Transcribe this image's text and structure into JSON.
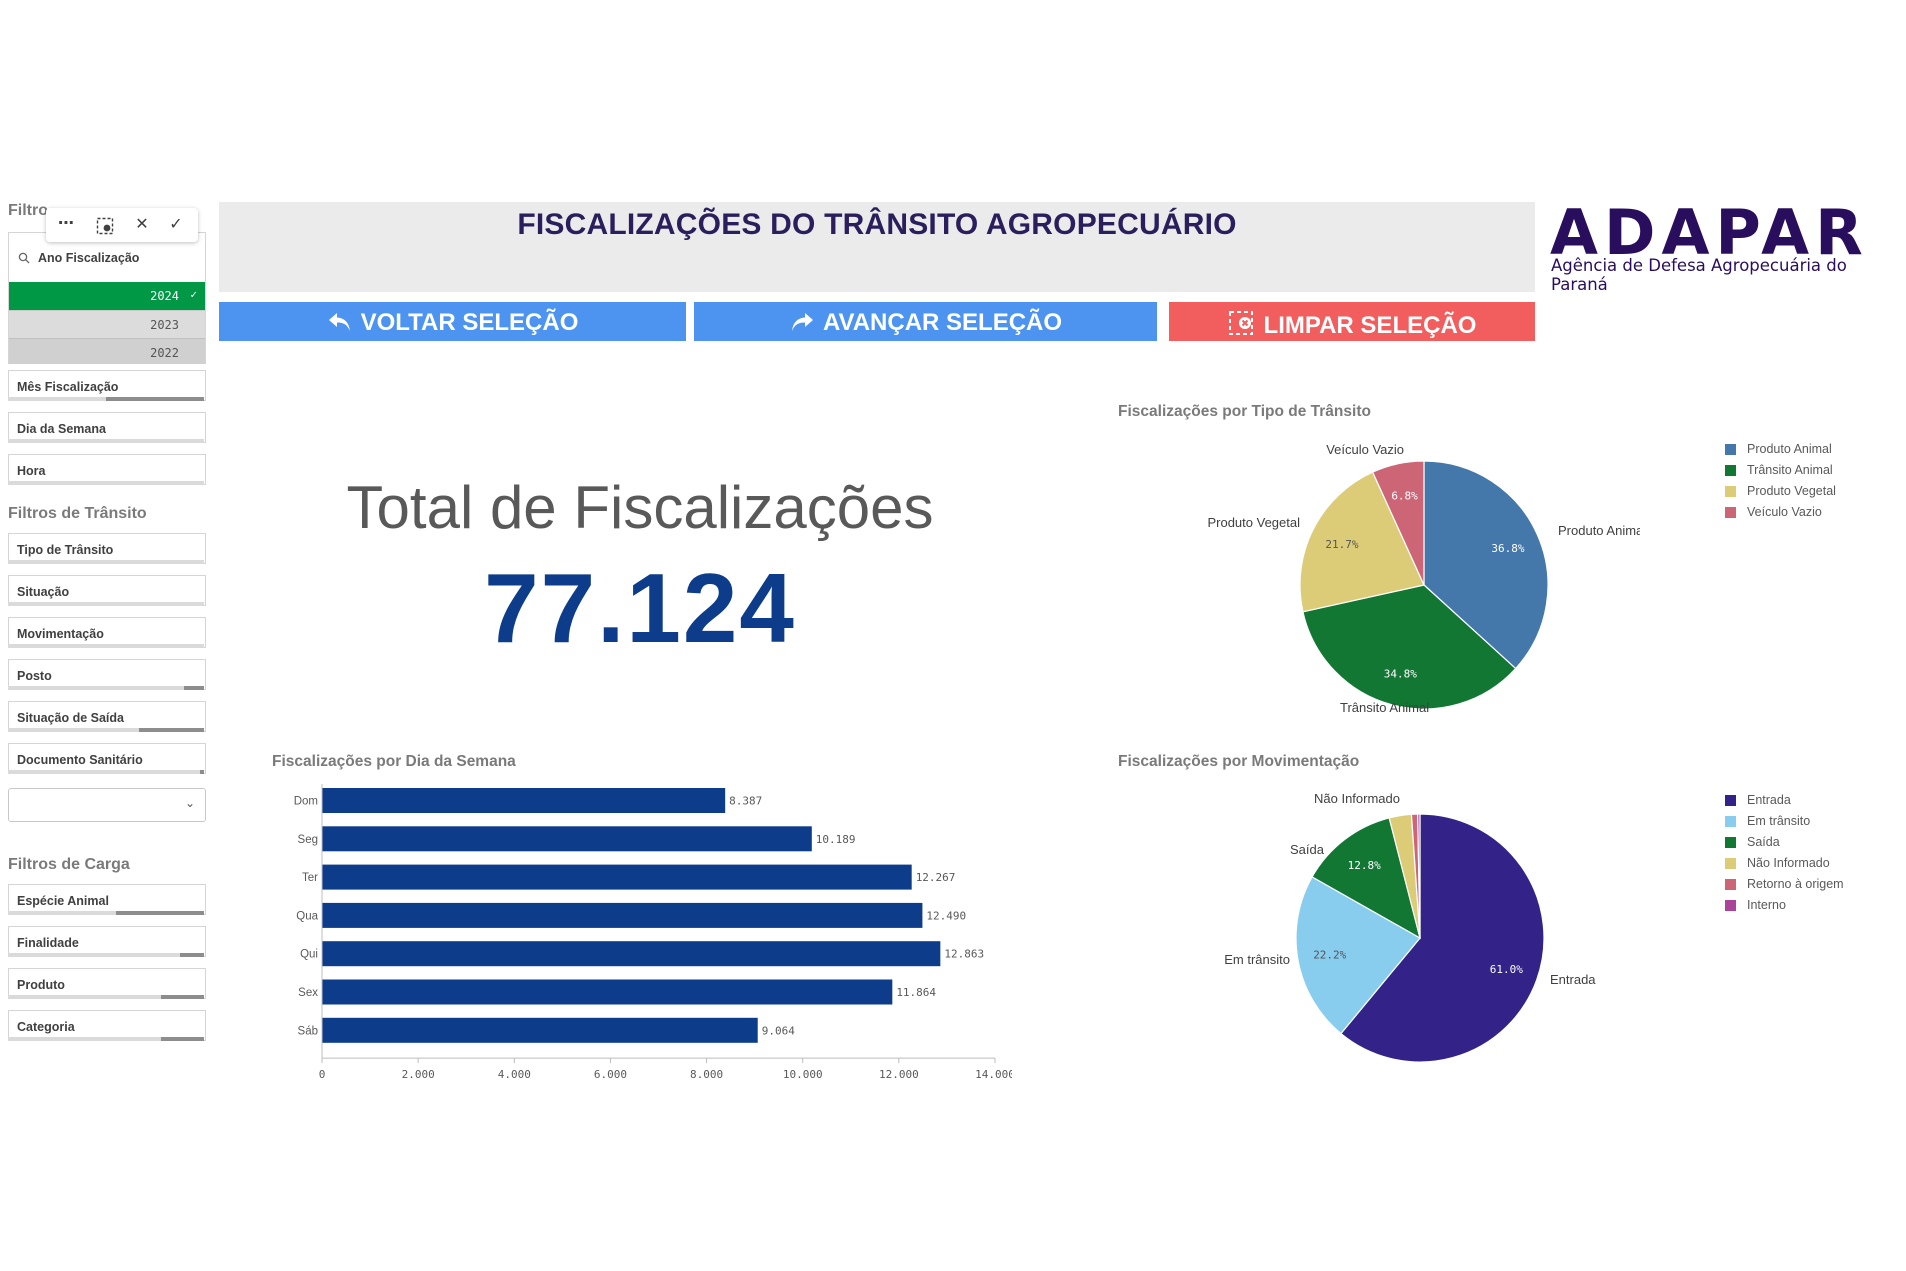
{
  "sidebar": {
    "filtro_title": "Filtro",
    "toolbar": {
      "more_label": "⋯",
      "close_label": "✕",
      "confirm_label": "✓"
    },
    "ano": {
      "label": "Ano Fiscalização",
      "options": [
        {
          "value": "2024",
          "selected": true
        },
        {
          "value": "2023",
          "selected": false
        },
        {
          "value": "2022",
          "selected": false
        }
      ]
    },
    "filters_top": [
      {
        "label": "Mês Fiscalização",
        "fill": 0.5
      },
      {
        "label": "Dia da Semana",
        "fill": 0
      },
      {
        "label": "Hora",
        "fill": 0
      }
    ],
    "transito_title": "Filtros de Trânsito",
    "filters_transito": [
      {
        "label": "Tipo de Trânsito",
        "fill": 0
      },
      {
        "label": "Situação",
        "fill": 0
      },
      {
        "label": "Movimentação",
        "fill": 0
      },
      {
        "label": "Posto",
        "fill": 0.1
      },
      {
        "label": "Situação de Saída",
        "fill": 0.33
      },
      {
        "label": "Documento Sanitário",
        "fill": 0.02
      }
    ],
    "dropdown_value": "",
    "carga_title": "Filtros de Carga",
    "filters_carga": [
      {
        "label": "Espécie Animal",
        "fill": 0.45
      },
      {
        "label": "Finalidade",
        "fill": 0.12
      },
      {
        "label": "Produto",
        "fill": 0.22
      },
      {
        "label": "Categoria",
        "fill": 0.22
      }
    ]
  },
  "header": {
    "title": "FISCALIZAÇÕES DO TRÂNSITO AGROPECUÁRIO",
    "logo_word": "ADAPAR",
    "logo_sub": "Agência de Defesa Agropecuária do Paraná"
  },
  "actions": {
    "back": "VOLTAR SELEÇÃO",
    "forward": "AVANÇAR SELEÇÃO",
    "clear": "LIMPAR SELEÇÃO",
    "colors": {
      "back": "#4d94f0",
      "forward": "#4d94f0",
      "clear": "#f25d5d"
    }
  },
  "kpi": {
    "label": "Total de Fiscalizações",
    "value": "77.124"
  },
  "chart_data": [
    {
      "type": "bar",
      "orientation": "horizontal",
      "title": "Fiscalizações por Dia da Semana",
      "categories": [
        "Dom",
        "Seg",
        "Ter",
        "Qua",
        "Qui",
        "Sex",
        "Sáb"
      ],
      "values": [
        8387,
        10189,
        12267,
        12490,
        12863,
        11864,
        9064
      ],
      "value_labels": [
        "8.387",
        "10.189",
        "12.267",
        "12.490",
        "12.863",
        "11.864",
        "9.064"
      ],
      "xlim": [
        0,
        14000
      ],
      "xticks": [
        0,
        2000,
        4000,
        6000,
        8000,
        10000,
        12000,
        14000
      ],
      "xtick_labels": [
        "0",
        "2.000",
        "4.000",
        "6.000",
        "8.000",
        "10.000",
        "12.000",
        "14.000"
      ],
      "color": "#0d3d8a",
      "grid": false
    },
    {
      "type": "pie",
      "title": "Fiscalizações por Tipo de Trânsito",
      "slices": [
        {
          "name": "Produto Animal",
          "value": 36.8,
          "label": "36.8%",
          "color": "#4477aa"
        },
        {
          "name": "Trânsito Animal",
          "value": 34.8,
          "label": "34.8%",
          "color": "#117733"
        },
        {
          "name": "Produto Vegetal",
          "value": 21.7,
          "label": "21.7%",
          "color": "#ddcc77"
        },
        {
          "name": "Veículo Vazio",
          "value": 6.8,
          "label": "6.8%",
          "color": "#cc6677"
        }
      ],
      "legend": "top-right"
    },
    {
      "type": "pie",
      "title": "Fiscalizações por Movimentação",
      "slices": [
        {
          "name": "Entrada",
          "value": 61.0,
          "label": "61.0%",
          "color": "#332288"
        },
        {
          "name": "Em trânsito",
          "value": 22.2,
          "label": "22.2%",
          "color": "#88ccee"
        },
        {
          "name": "Saída",
          "value": 12.8,
          "label": "12.8%",
          "color": "#117733"
        },
        {
          "name": "Não Informado",
          "value": 2.9,
          "label": "",
          "color": "#ddcc77"
        },
        {
          "name": "Retorno à origem",
          "value": 0.8,
          "label": "",
          "color": "#cc6677"
        },
        {
          "name": "Interno",
          "value": 0.3,
          "label": "",
          "color": "#aa4499"
        }
      ],
      "outer_labels": [
        "Entrada",
        "Em trânsito",
        "Saída",
        "Não Informado"
      ],
      "legend": "top-right"
    }
  ]
}
